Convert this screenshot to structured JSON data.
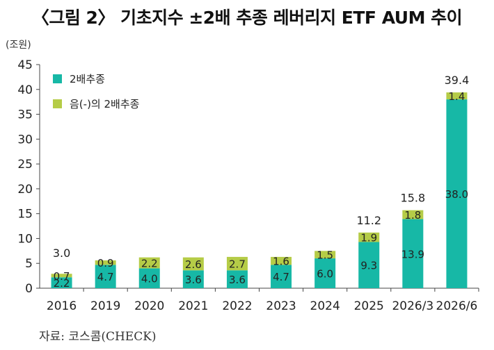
{
  "title": "〈그림 2〉 기초지수 ±2배 추종 레버리지 ETF AUM 추이",
  "unit_label": "(조원)",
  "source": "자료: 코스콤(CHECK)",
  "colors": {
    "positive": "#17b8a6",
    "inverse": "#b5cc47",
    "axis": "#444444"
  },
  "chart_data": {
    "type": "bar",
    "stacked": true,
    "categories": [
      "2016",
      "2019",
      "2020",
      "2021",
      "2022",
      "2023",
      "2024",
      "2025",
      "2026/3",
      "2026/6"
    ],
    "series": [
      {
        "name": "2배추종",
        "values": [
          2.2,
          4.7,
          4.0,
          3.6,
          3.6,
          4.7,
          6.0,
          9.3,
          13.9,
          38.0
        ]
      },
      {
        "name": "음(-)의 2배추종",
        "values": [
          0.7,
          0.9,
          2.2,
          2.6,
          2.7,
          1.6,
          1.5,
          1.9,
          1.8,
          1.4
        ]
      }
    ],
    "totals": [
      {
        "category": "2016",
        "label": "3.0"
      },
      {
        "category": "2025",
        "label": "11.2"
      },
      {
        "category": "2026/3",
        "label": "15.8"
      },
      {
        "category": "2026/6",
        "label": "39.4"
      }
    ],
    "ylim": [
      0,
      45
    ],
    "yticks": [
      0,
      5,
      10,
      15,
      20,
      25,
      30,
      35,
      40,
      45
    ],
    "legend_position": "top-left",
    "grid": false
  }
}
